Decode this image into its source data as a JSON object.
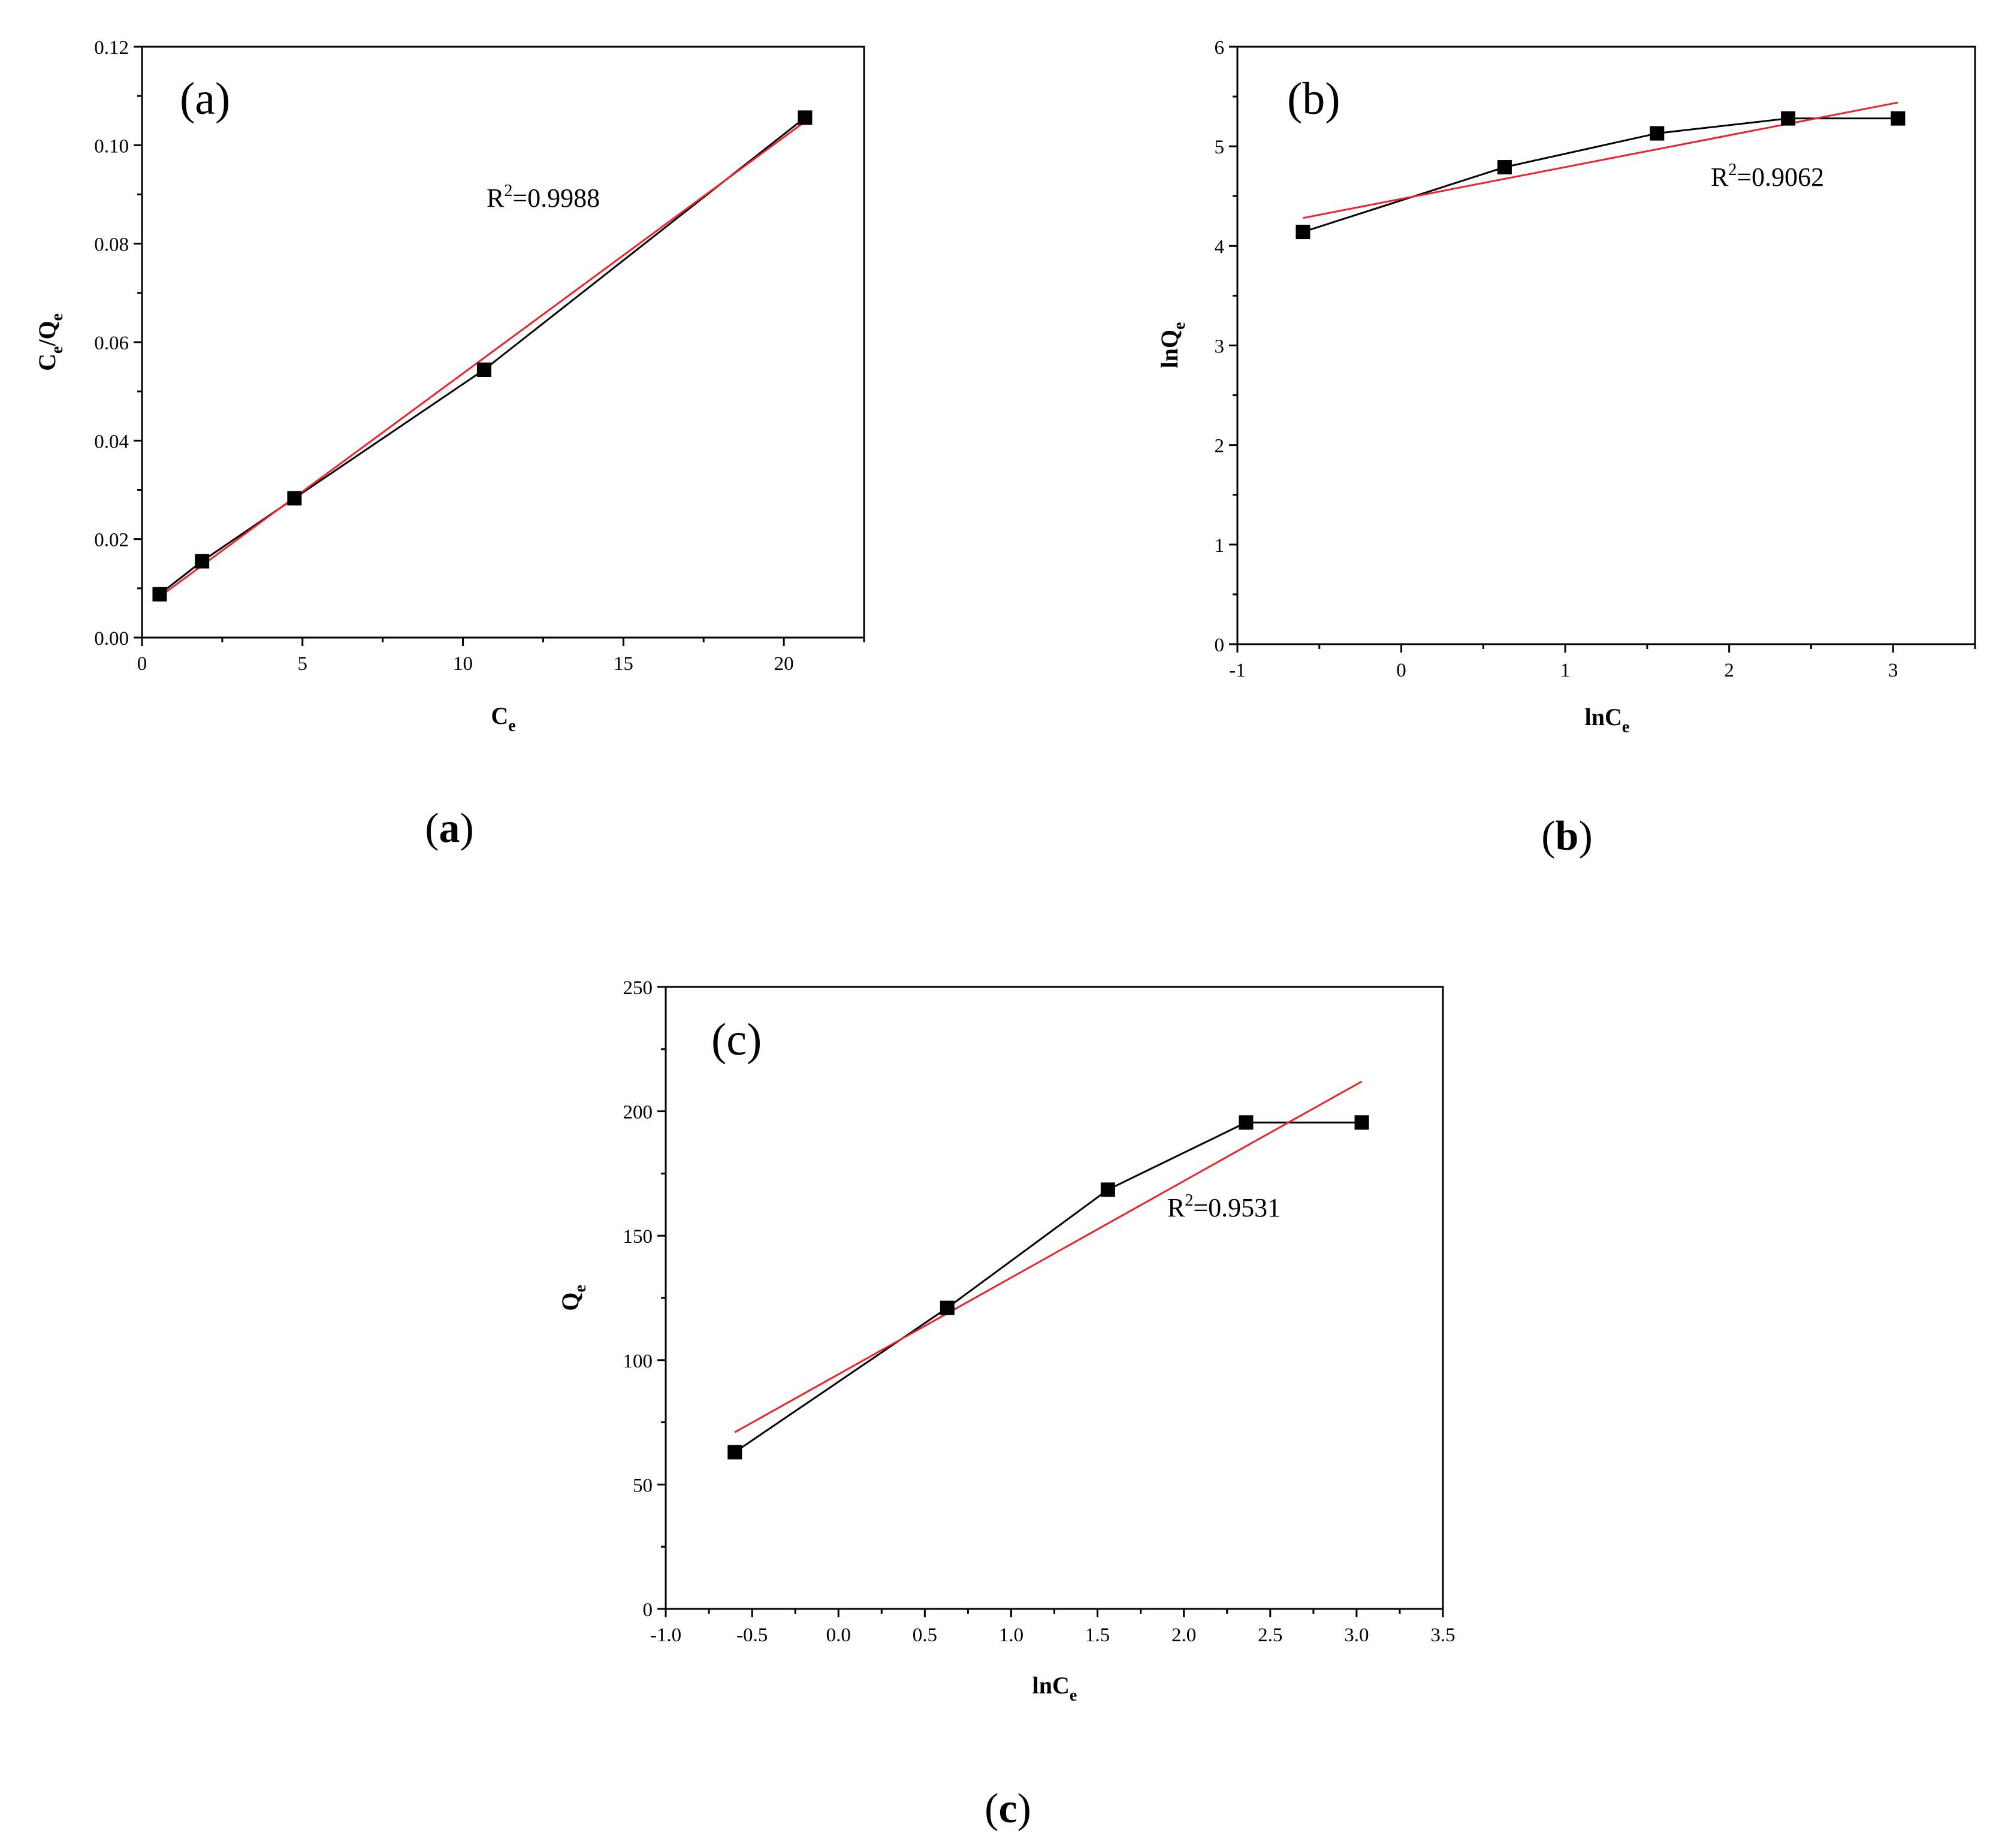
{
  "colors": {
    "data_line": "#000000",
    "fit_line": "#e8252e",
    "marker": "#000000",
    "frame": "#000000"
  },
  "chart_data": [
    {
      "type": "line",
      "panel_label": "(a)",
      "caption": {
        "open": "(",
        "letter": "a",
        "close": ")"
      },
      "xlabel": {
        "base": "C",
        "sub": "e"
      },
      "ylabel": {
        "base": "C",
        "sub": "e",
        "mid": "/Q",
        "sub2": "e"
      },
      "annotation": {
        "base": "R",
        "sup": "2",
        "rest": "=0.9988"
      },
      "xlim": [
        0,
        22.5
      ],
      "ylim": [
        0,
        0.12
      ],
      "xticks": [
        "0",
        "5",
        "10",
        "15",
        "20"
      ],
      "xtick_values": [
        0,
        5,
        10,
        15,
        20
      ],
      "yticks": [
        "0.00",
        "0.02",
        "0.04",
        "0.06",
        "0.08",
        "0.10",
        "0.12"
      ],
      "ytick_values": [
        0,
        0.02,
        0.04,
        0.06,
        0.08,
        0.1,
        0.12
      ],
      "grid": false,
      "series": [
        {
          "x": [
            0.55,
            1.87,
            4.75,
            10.66,
            20.66
          ],
          "y": [
            0.0088,
            0.0155,
            0.0283,
            0.0544,
            0.1056
          ]
        }
      ],
      "fit": {
        "x": [
          0.55,
          20.66
        ],
        "y": [
          0.0083,
          0.1048
        ]
      }
    },
    {
      "type": "line",
      "panel_label": "(b)",
      "caption": {
        "open": "(",
        "letter": "b",
        "close": ")"
      },
      "xlabel": {
        "base": "lnC",
        "sub": "e"
      },
      "ylabel": {
        "base": "lnQ",
        "sub": "e"
      },
      "annotation": {
        "base": "R",
        "sup": "2",
        "rest": "=0.9062"
      },
      "xlim": [
        -1,
        3.5
      ],
      "ylim": [
        0,
        6
      ],
      "xticks": [
        "-1",
        "0",
        "1",
        "2",
        "3"
      ],
      "xtick_values": [
        -1,
        0,
        1,
        2,
        3
      ],
      "yticks": [
        "0",
        "1",
        "2",
        "3",
        "4",
        "5",
        "6"
      ],
      "ytick_values": [
        0,
        1,
        2,
        3,
        4,
        5,
        6
      ],
      "grid": false,
      "series": [
        {
          "x": [
            -0.6,
            0.63,
            1.56,
            2.36,
            3.03
          ],
          "y": [
            4.14,
            4.79,
            5.13,
            5.28,
            5.28
          ]
        }
      ],
      "fit": {
        "x": [
          -0.6,
          3.03
        ],
        "y": [
          4.28,
          5.44
        ]
      }
    },
    {
      "type": "line",
      "panel_label": "(c)",
      "caption": {
        "open": "(",
        "letter": "c",
        "close": ")"
      },
      "xlabel": {
        "base": "lnC",
        "sub": "e"
      },
      "ylabel": {
        "base": "Q",
        "sub": "e"
      },
      "annotation": {
        "base": "R",
        "sup": "2",
        "rest": "=0.9531"
      },
      "xlim": [
        -1.0,
        3.5
      ],
      "ylim": [
        0,
        250
      ],
      "xticks": [
        "-1.0",
        "-0.5",
        "0.0",
        "0.5",
        "1.0",
        "1.5",
        "2.0",
        "2.5",
        "3.0",
        "3.5"
      ],
      "xtick_values": [
        -1,
        -0.5,
        0,
        0.5,
        1,
        1.5,
        2,
        2.5,
        3,
        3.5
      ],
      "yticks": [
        "0",
        "50",
        "100",
        "150",
        "200",
        "250"
      ],
      "ytick_values": [
        0,
        50,
        100,
        150,
        200,
        250
      ],
      "grid": false,
      "series": [
        {
          "x": [
            -0.6,
            0.63,
            1.56,
            2.36,
            3.03
          ],
          "y": [
            63,
            121,
            168.5,
            195.5,
            195.5
          ]
        }
      ],
      "fit": {
        "x": [
          -0.6,
          3.03
        ],
        "y": [
          71,
          212
        ]
      }
    }
  ]
}
